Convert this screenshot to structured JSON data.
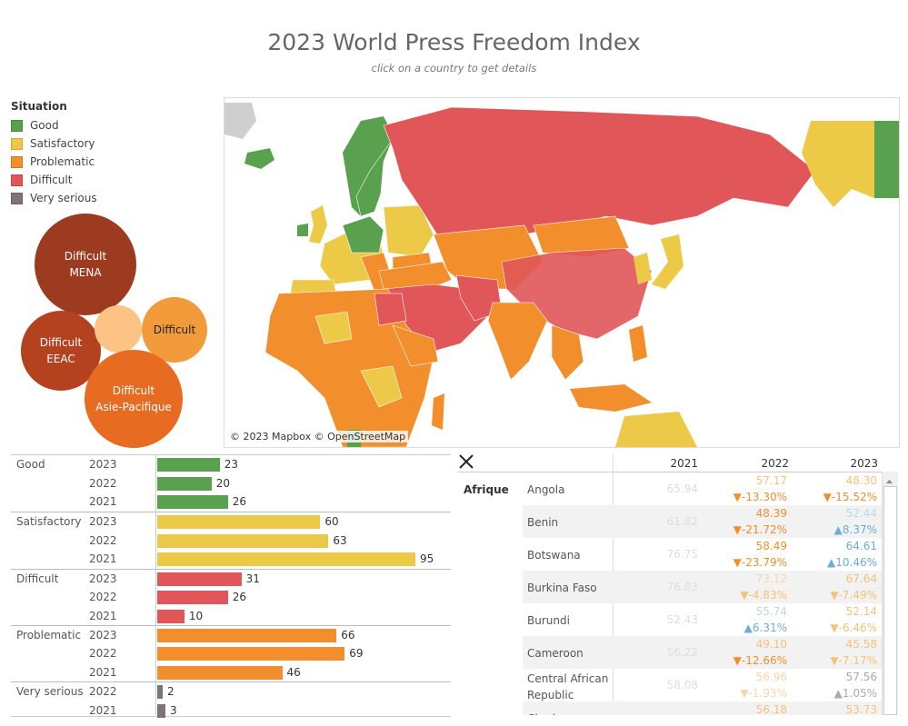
{
  "header": {
    "title": "2023 World Press Freedom Index",
    "subtitle": "click on a country to get details"
  },
  "legend": {
    "title": "Situation",
    "items": [
      {
        "label": "Good",
        "color": "#59a14f"
      },
      {
        "label": "Satisfactory",
        "color": "#edc948"
      },
      {
        "label": "Problematic",
        "color": "#f28e2b"
      },
      {
        "label": "Difficult",
        "color": "#e15759"
      },
      {
        "label": "Very serious",
        "color": "#7f7374"
      }
    ]
  },
  "bubbles": [
    {
      "line1": "Difficult",
      "line2": "MENA",
      "color": "#9c3b1f"
    },
    {
      "line1": "Difficult",
      "line2": "EEAC",
      "color": "#b5421f"
    },
    {
      "line1": "",
      "line2": "",
      "color": "#fdc385"
    },
    {
      "line1": "Difficult",
      "line2": "",
      "color": "#f29b3b"
    },
    {
      "line1": "Difficult",
      "line2": "Asie-Pacifique",
      "color": "#e86b22"
    }
  ],
  "map": {
    "attribution": "© 2023 Mapbox © OpenStreetMap"
  },
  "bar_table": {
    "max": 95,
    "groups": [
      {
        "label": "Good",
        "color": "#59a14f",
        "rows": [
          {
            "year": "2023",
            "value": 23
          },
          {
            "year": "2022",
            "value": 20
          },
          {
            "year": "2021",
            "value": 26
          }
        ]
      },
      {
        "label": "Satisfactory",
        "color": "#edc948",
        "rows": [
          {
            "year": "2023",
            "value": 60
          },
          {
            "year": "2022",
            "value": 63
          },
          {
            "year": "2021",
            "value": 95
          }
        ]
      },
      {
        "label": "Difficult",
        "color": "#e15759",
        "rows": [
          {
            "year": "2023",
            "value": 31
          },
          {
            "year": "2022",
            "value": 26
          },
          {
            "year": "2021",
            "value": 10
          }
        ]
      },
      {
        "label": "Problematic",
        "color": "#f28e2b",
        "rows": [
          {
            "year": "2023",
            "value": 66
          },
          {
            "year": "2022",
            "value": 69
          },
          {
            "year": "2021",
            "value": 46
          }
        ]
      },
      {
        "label": "Very serious",
        "color": "#7f7374",
        "rows": [
          {
            "year": "2022",
            "value": 2
          },
          {
            "year": "2021",
            "value": 3
          }
        ]
      }
    ]
  },
  "details": {
    "columns": [
      "2021",
      "2022",
      "2023"
    ],
    "region": "Afrique",
    "colors": {
      "orange": "#f28e2b",
      "lightorange": "#f5c27a",
      "blue": "#6baed6",
      "gray": "#aaaaaa",
      "faded": "#f8d5a8",
      "lightblue": "#b8d8ee"
    },
    "rows": [
      {
        "country": "Angola",
        "v2021": "65.94",
        "v2022": "57.17",
        "c2022": "▼-13.30%",
        "col2022": "lightorange",
        "chg2022": "orange",
        "v2023": "48.30",
        "c2023": "▼-15.52%",
        "col2023": "lightorange",
        "chg2023": "orange"
      },
      {
        "country": "Benin",
        "v2021": "61.82",
        "v2022": "48.39",
        "c2022": "▼-21.72%",
        "col2022": "orange",
        "chg2022": "orange",
        "v2023": "52.44",
        "c2023": "▲8.37%",
        "col2023": "lightblue",
        "chg2023": "blue"
      },
      {
        "country": "Botswana",
        "v2021": "76.75",
        "v2022": "58.49",
        "c2022": "▼-23.79%",
        "col2022": "orange",
        "chg2022": "orange",
        "v2023": "64.61",
        "c2023": "▲10.46%",
        "col2023": "blue",
        "chg2023": "blue"
      },
      {
        "country": "Burkina Faso",
        "v2021": "76.83",
        "v2022": "73.12",
        "c2022": "▼-4.83%",
        "col2022": "faded",
        "chg2022": "lightorange",
        "v2023": "67.64",
        "c2023": "▼-7.49%",
        "col2023": "lightorange",
        "chg2023": "lightorange"
      },
      {
        "country": "Burundi",
        "v2021": "52.43",
        "v2022": "55.74",
        "c2022": "▲6.31%",
        "col2022": "lightblue",
        "chg2022": "blue",
        "v2023": "52.14",
        "c2023": "▼-6.46%",
        "col2023": "lightorange",
        "chg2023": "lightorange"
      },
      {
        "country": "Cameroon",
        "v2021": "56.22",
        "v2022": "49.10",
        "c2022": "▼-12.66%",
        "col2022": "lightorange",
        "chg2022": "orange",
        "v2023": "45.58",
        "c2023": "▼-7.17%",
        "col2023": "lightorange",
        "chg2023": "lightorange"
      },
      {
        "country": "Central African Republic",
        "v2021": "58.08",
        "v2022": "56.96",
        "c2022": "▼-1.93%",
        "col2022": "faded",
        "chg2022": "faded",
        "v2023": "57.56",
        "c2023": "▲1.05%",
        "col2023": "gray",
        "chg2023": "gray"
      },
      {
        "country": "Chad",
        "v2021": "",
        "v2022": "56.18",
        "c2022": "",
        "col2022": "lightorange",
        "chg2022": "orange",
        "v2023": "53.73",
        "c2023": "",
        "col2023": "lightorange",
        "chg2023": "orange"
      }
    ]
  }
}
